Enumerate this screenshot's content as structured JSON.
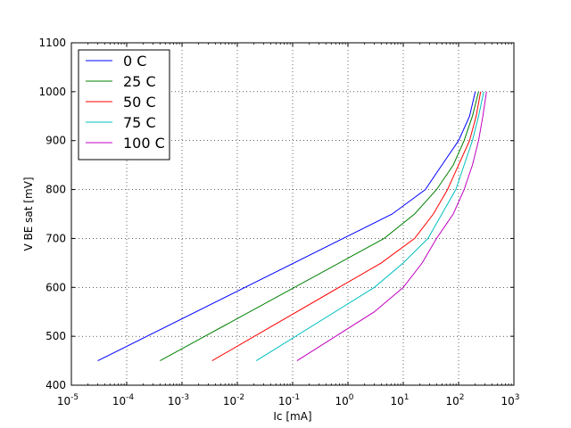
{
  "chart_data": {
    "type": "line",
    "title": "",
    "xlabel": "Ic [mA]",
    "ylabel": "V BE sat [mV]",
    "xscale": "log",
    "xlim": [
      1e-05,
      1000
    ],
    "ylim": [
      400,
      1100
    ],
    "grid": true,
    "legend_position": "top-left",
    "x_ticks": [
      {
        "value": 1e-05,
        "base": "10",
        "exp": "-5"
      },
      {
        "value": 0.0001,
        "base": "10",
        "exp": "-4"
      },
      {
        "value": 0.001,
        "base": "10",
        "exp": "-3"
      },
      {
        "value": 0.01,
        "base": "10",
        "exp": "-2"
      },
      {
        "value": 0.1,
        "base": "10",
        "exp": "-1"
      },
      {
        "value": 1,
        "base": "10",
        "exp": "0"
      },
      {
        "value": 10,
        "base": "10",
        "exp": "1"
      },
      {
        "value": 100,
        "base": "10",
        "exp": "2"
      },
      {
        "value": 1000,
        "base": "10",
        "exp": "3"
      }
    ],
    "y_ticks": [
      400,
      500,
      600,
      700,
      800,
      900,
      1000,
      1100
    ],
    "series": [
      {
        "name": "0 C",
        "color": "#0000ff",
        "points": [
          [
            3e-05,
            450
          ],
          [
            6.3,
            750
          ],
          [
            25,
            800
          ],
          [
            50,
            850
          ],
          [
            100,
            900
          ],
          [
            158,
            950
          ],
          [
            200,
            1000
          ]
        ]
      },
      {
        "name": "25 C",
        "color": "#008000",
        "points": [
          [
            0.0004,
            450
          ],
          [
            4.5,
            700
          ],
          [
            16,
            750
          ],
          [
            40,
            800
          ],
          [
            80,
            850
          ],
          [
            126,
            900
          ],
          [
            178,
            950
          ],
          [
            230,
            1000
          ]
        ]
      },
      {
        "name": "50 C",
        "color": "#ff0000",
        "points": [
          [
            0.0035,
            450
          ],
          [
            4,
            650
          ],
          [
            16,
            700
          ],
          [
            35,
            750
          ],
          [
            63,
            800
          ],
          [
            100,
            850
          ],
          [
            158,
            900
          ],
          [
            208,
            950
          ],
          [
            250,
            1000
          ]
        ]
      },
      {
        "name": "75 C",
        "color": "#00bfbf",
        "points": [
          [
            0.022,
            450
          ],
          [
            3,
            600
          ],
          [
            10,
            650
          ],
          [
            28,
            700
          ],
          [
            50,
            750
          ],
          [
            89,
            800
          ],
          [
            126,
            850
          ],
          [
            178,
            900
          ],
          [
            230,
            950
          ],
          [
            285,
            1000
          ]
        ]
      },
      {
        "name": "100 C",
        "color": "#bf00bf",
        "points": [
          [
            0.12,
            450
          ],
          [
            3,
            550
          ],
          [
            10,
            600
          ],
          [
            22,
            650
          ],
          [
            40,
            700
          ],
          [
            80,
            750
          ],
          [
            126,
            800
          ],
          [
            178,
            850
          ],
          [
            230,
            900
          ],
          [
            275,
            950
          ],
          [
            320,
            1000
          ]
        ]
      }
    ]
  }
}
